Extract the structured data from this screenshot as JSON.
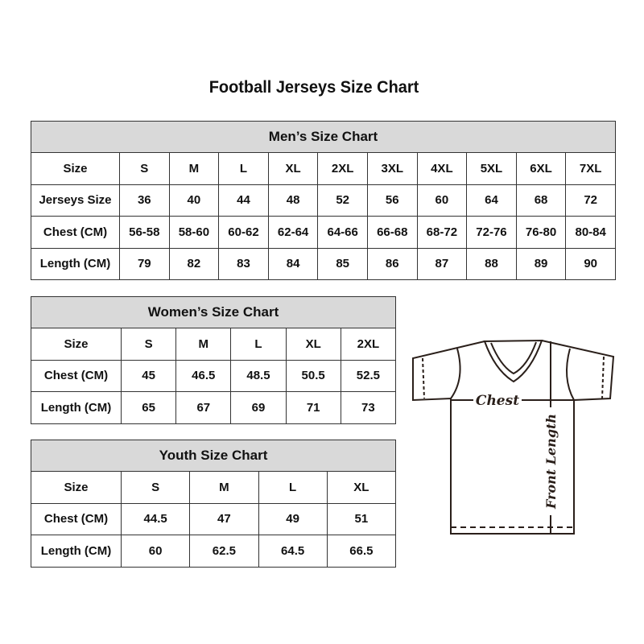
{
  "title": "Football Jerseys Size Chart",
  "men": {
    "caption": "Men’s Size Chart",
    "rows": [
      [
        "Size",
        "S",
        "M",
        "L",
        "XL",
        "2XL",
        "3XL",
        "4XL",
        "5XL",
        "6XL",
        "7XL"
      ],
      [
        "Jerseys Size",
        "36",
        "40",
        "44",
        "48",
        "52",
        "56",
        "60",
        "64",
        "68",
        "72"
      ],
      [
        "Chest (CM)",
        "56-58",
        "58-60",
        "60-62",
        "62-64",
        "64-66",
        "66-68",
        "68-72",
        "72-76",
        "76-80",
        "80-84"
      ],
      [
        "Length (CM)",
        "79",
        "82",
        "83",
        "84",
        "85",
        "86",
        "87",
        "88",
        "89",
        "90"
      ]
    ]
  },
  "women": {
    "caption": "Women’s Size Chart",
    "rows": [
      [
        "Size",
        "S",
        "M",
        "L",
        "XL",
        "2XL"
      ],
      [
        "Chest (CM)",
        "45",
        "46.5",
        "48.5",
        "50.5",
        "52.5"
      ],
      [
        "Length (CM)",
        "65",
        "67",
        "69",
        "71",
        "73"
      ]
    ]
  },
  "youth": {
    "caption": "Youth Size Chart",
    "rows": [
      [
        "Size",
        "S",
        "M",
        "L",
        "XL"
      ],
      [
        "Chest (CM)",
        "44.5",
        "47",
        "49",
        "51"
      ],
      [
        "Length (CM)",
        "60",
        "62.5",
        "64.5",
        "66.5"
      ]
    ]
  },
  "diagram": {
    "chest_label": "Chest",
    "length_label": "Front Length"
  }
}
